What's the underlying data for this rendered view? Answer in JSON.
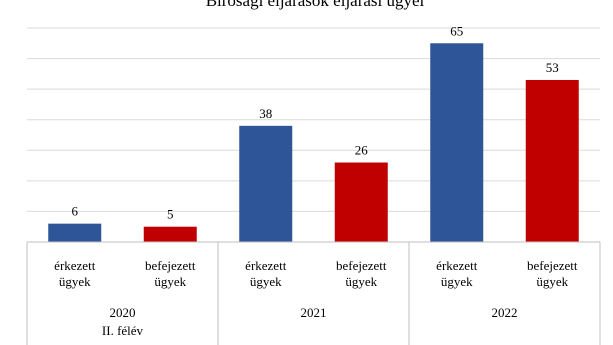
{
  "chart_data": {
    "type": "bar",
    "title": "Bírósági eljárások eljárási ügyei",
    "groups": [
      {
        "label_lines": [
          "2020",
          "II. félév"
        ],
        "bars": [
          {
            "label_lines": [
              "érkezett",
              "ügyek"
            ],
            "value": 6,
            "color": "#2e5597"
          },
          {
            "label_lines": [
              "befejezett",
              "ügyek"
            ],
            "value": 5,
            "color": "#c00000"
          }
        ]
      },
      {
        "label_lines": [
          "2021"
        ],
        "bars": [
          {
            "label_lines": [
              "érkezett",
              "ügyek"
            ],
            "value": 38,
            "color": "#2e5597"
          },
          {
            "label_lines": [
              "befejezett",
              "ügyek"
            ],
            "value": 26,
            "color": "#c00000"
          }
        ]
      },
      {
        "label_lines": [
          "2022"
        ],
        "bars": [
          {
            "label_lines": [
              "érkezett",
              "ügyek"
            ],
            "value": 65,
            "color": "#2e5597"
          },
          {
            "label_lines": [
              "befejezett",
              "ügyek"
            ],
            "value": 53,
            "color": "#c00000"
          }
        ]
      }
    ],
    "ylim": [
      0,
      70
    ],
    "grid": true
  }
}
